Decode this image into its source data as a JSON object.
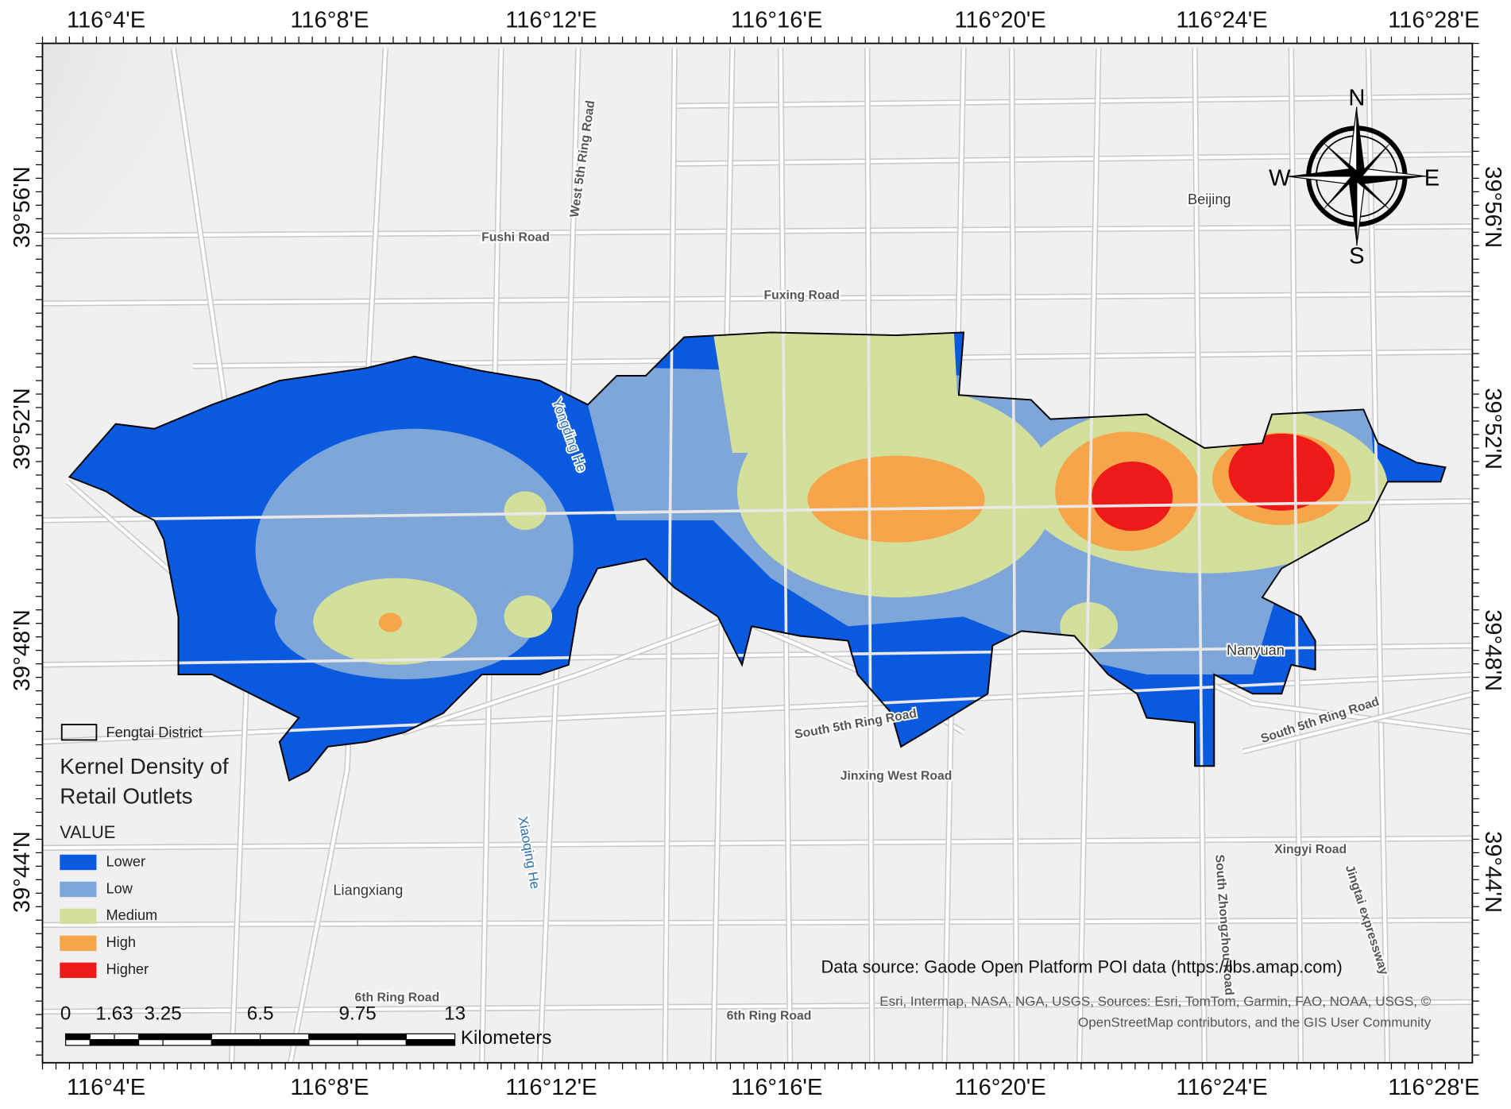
{
  "graticule": {
    "longitudes": [
      "116°4'E",
      "116°8'E",
      "116°12'E",
      "116°16'E",
      "116°20'E",
      "116°24'E",
      "116°28'E"
    ],
    "latitudes": [
      "39°56'N",
      "39°52'N",
      "39°48'N",
      "39°44'N"
    ]
  },
  "places": [
    "Beijing",
    "Nanyuan",
    "Liangxiang"
  ],
  "roads": [
    "Fushi Road",
    "West 5th Ring Road",
    "Fuxing Road",
    "South 5th Ring Road",
    "Jinxing West Road",
    "Xingyi Road",
    "South Zhongzhou Road",
    "Jingtai expressway",
    "6th Ring Road",
    "6th Ring Road",
    "South 5th Ring Road"
  ],
  "rivers": [
    "Yongding He",
    "Xiaoqing He"
  ],
  "compass": {
    "north": "N",
    "south": "S",
    "east": "E",
    "west": "W"
  },
  "legend": {
    "boundary": "Fengtai District",
    "title_lines": [
      "Kernel Density of",
      "Retail Outlets"
    ],
    "field": "VALUE",
    "classes": [
      {
        "label": "Lower",
        "color": "#0a5ae0"
      },
      {
        "label": "Low",
        "color": "#7ea6d9"
      },
      {
        "label": "Medium",
        "color": "#d3e09c"
      },
      {
        "label": "High",
        "color": "#f7a54a"
      },
      {
        "label": "Higher",
        "color": "#ee1a1a"
      }
    ]
  },
  "scale_bar": {
    "ticks": [
      0,
      1.63,
      3.25,
      6.5,
      9.75,
      13
    ],
    "unit": "Kilometers"
  },
  "credits": {
    "data_source": "Data source: Gaode Open Platform POI data (https://lbs.amap.com)",
    "attribution": [
      "Esri, Intermap, NASA, NGA, USGS, Sources: Esri, TomTom, Garmin, FAO, NOAA, USGS, ©",
      "OpenStreetMap contributors, and the GIS User Community"
    ]
  }
}
